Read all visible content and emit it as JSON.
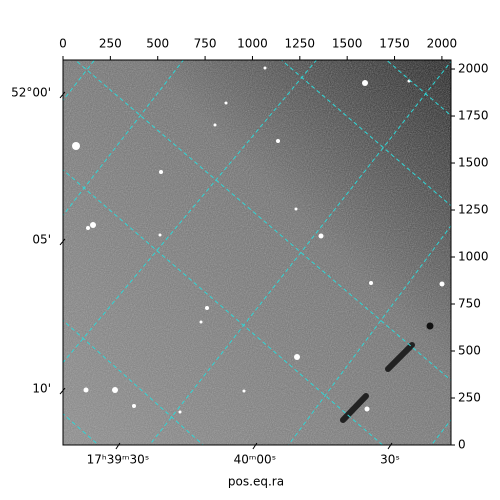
{
  "chart_data": {
    "type": "image",
    "xlabel": "pos.eq.ra",
    "xlim": [
      0,
      2048
    ],
    "ylim": [
      0,
      2048
    ],
    "xticks": [
      0,
      250,
      500,
      750,
      1000,
      1250,
      1500,
      1750,
      2000
    ],
    "yticks": [
      0,
      250,
      500,
      750,
      1000,
      1250,
      1500,
      1750,
      2000
    ],
    "ra_ticks": [
      {
        "value": 290,
        "label": "17ʰ39ᵐ30ˢ"
      },
      {
        "value": 1013,
        "label": "40ᵐ00ˢ"
      },
      {
        "value": 1726,
        "label": "30ˢ"
      }
    ],
    "dec_ticks": [
      {
        "value": 1862,
        "label": "52°00'"
      },
      {
        "value": 1080,
        "label": "05'"
      },
      {
        "value": 287,
        "label": "10'"
      }
    ],
    "grid": true,
    "grid_color": "#2fd6d6"
  }
}
